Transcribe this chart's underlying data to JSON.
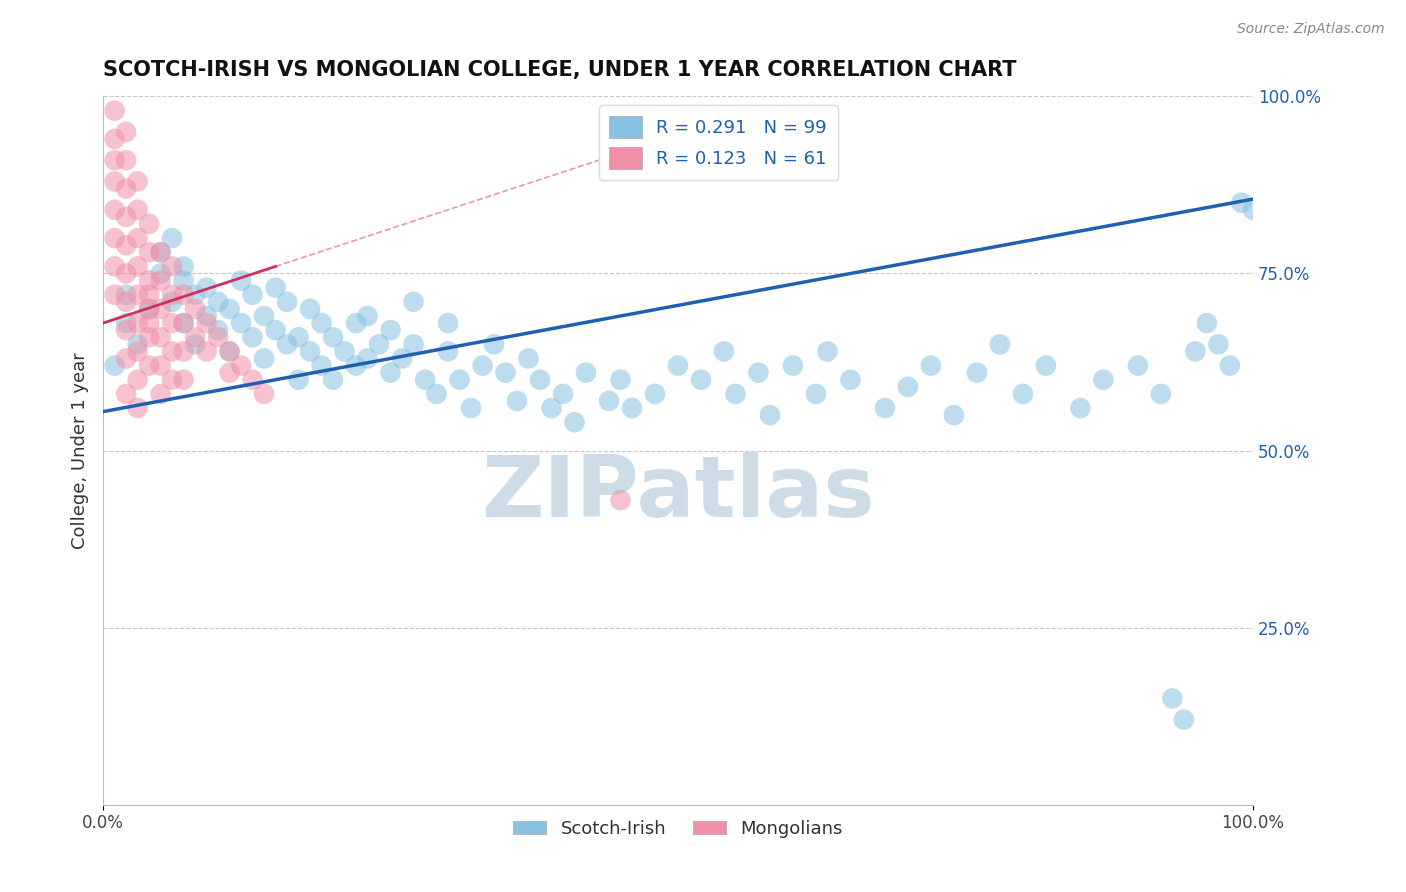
{
  "title": "SCOTCH-IRISH VS MONGOLIAN COLLEGE, UNDER 1 YEAR CORRELATION CHART",
  "source_text": "Source: ZipAtlas.com",
  "ylabel": "College, Under 1 year",
  "xlim": [
    0,
    1.0
  ],
  "ylim": [
    0,
    1.0
  ],
  "ytick_vals_right": [
    1.0,
    0.75,
    0.5,
    0.25
  ],
  "ytick_labels_right": [
    "100.0%",
    "75.0%",
    "50.0%",
    "25.0%"
  ],
  "color_blue": "#88c0e0",
  "color_pink": "#f090a8",
  "color_blue_line": "#2060b0",
  "color_pink_line": "#d03060",
  "watermark_color": "#ccdde8",
  "grid_color": "#c8c8c8",
  "background_color": "#ffffff",
  "blue_line_start_y": 0.555,
  "blue_line_end_y": 0.855,
  "pink_line_start_x": 0.0,
  "pink_line_start_y": 0.68,
  "pink_line_end_x": 0.15,
  "pink_line_end_y": 0.76,
  "scotch_irish_x": [
    0.01,
    0.02,
    0.02,
    0.03,
    0.04,
    0.05,
    0.05,
    0.06,
    0.06,
    0.07,
    0.07,
    0.07,
    0.08,
    0.08,
    0.09,
    0.09,
    0.1,
    0.1,
    0.11,
    0.11,
    0.12,
    0.12,
    0.13,
    0.13,
    0.14,
    0.14,
    0.15,
    0.15,
    0.16,
    0.16,
    0.17,
    0.17,
    0.18,
    0.18,
    0.19,
    0.19,
    0.2,
    0.2,
    0.21,
    0.22,
    0.22,
    0.23,
    0.23,
    0.24,
    0.25,
    0.25,
    0.26,
    0.27,
    0.27,
    0.28,
    0.29,
    0.3,
    0.3,
    0.31,
    0.32,
    0.33,
    0.34,
    0.35,
    0.36,
    0.37,
    0.38,
    0.39,
    0.4,
    0.41,
    0.42,
    0.44,
    0.45,
    0.46,
    0.48,
    0.5,
    0.52,
    0.54,
    0.55,
    0.57,
    0.58,
    0.6,
    0.62,
    0.63,
    0.65,
    0.68,
    0.7,
    0.72,
    0.74,
    0.76,
    0.78,
    0.8,
    0.82,
    0.85,
    0.87,
    0.9,
    0.92,
    0.93,
    0.94,
    0.95,
    0.96,
    0.97,
    0.98,
    0.99,
    1.0
  ],
  "scotch_irish_y": [
    0.62,
    0.68,
    0.72,
    0.65,
    0.7,
    0.75,
    0.78,
    0.8,
    0.71,
    0.76,
    0.68,
    0.74,
    0.72,
    0.65,
    0.69,
    0.73,
    0.67,
    0.71,
    0.64,
    0.7,
    0.68,
    0.74,
    0.66,
    0.72,
    0.63,
    0.69,
    0.67,
    0.73,
    0.65,
    0.71,
    0.6,
    0.66,
    0.64,
    0.7,
    0.62,
    0.68,
    0.6,
    0.66,
    0.64,
    0.62,
    0.68,
    0.63,
    0.69,
    0.65,
    0.61,
    0.67,
    0.63,
    0.65,
    0.71,
    0.6,
    0.58,
    0.64,
    0.68,
    0.6,
    0.56,
    0.62,
    0.65,
    0.61,
    0.57,
    0.63,
    0.6,
    0.56,
    0.58,
    0.54,
    0.61,
    0.57,
    0.6,
    0.56,
    0.58,
    0.62,
    0.6,
    0.64,
    0.58,
    0.61,
    0.55,
    0.62,
    0.58,
    0.64,
    0.6,
    0.56,
    0.59,
    0.62,
    0.55,
    0.61,
    0.65,
    0.58,
    0.62,
    0.56,
    0.6,
    0.62,
    0.58,
    0.15,
    0.12,
    0.64,
    0.68,
    0.65,
    0.62,
    0.85,
    0.84
  ],
  "mongolian_x": [
    0.01,
    0.01,
    0.01,
    0.01,
    0.01,
    0.01,
    0.01,
    0.01,
    0.02,
    0.02,
    0.02,
    0.02,
    0.02,
    0.02,
    0.02,
    0.02,
    0.02,
    0.03,
    0.03,
    0.03,
    0.03,
    0.03,
    0.03,
    0.03,
    0.03,
    0.04,
    0.04,
    0.04,
    0.04,
    0.04,
    0.04,
    0.05,
    0.05,
    0.05,
    0.05,
    0.05,
    0.06,
    0.06,
    0.06,
    0.06,
    0.07,
    0.07,
    0.07,
    0.07,
    0.08,
    0.08,
    0.09,
    0.09,
    0.1,
    0.11,
    0.11,
    0.12,
    0.13,
    0.14,
    0.02,
    0.03,
    0.04,
    0.04,
    0.05,
    0.06,
    0.45
  ],
  "mongolian_y": [
    0.98,
    0.94,
    0.91,
    0.88,
    0.84,
    0.8,
    0.76,
    0.72,
    0.95,
    0.91,
    0.87,
    0.83,
    0.79,
    0.75,
    0.71,
    0.67,
    0.63,
    0.88,
    0.84,
    0.8,
    0.76,
    0.72,
    0.68,
    0.64,
    0.6,
    0.82,
    0.78,
    0.74,
    0.7,
    0.66,
    0.62,
    0.78,
    0.74,
    0.7,
    0.66,
    0.62,
    0.76,
    0.72,
    0.68,
    0.64,
    0.72,
    0.68,
    0.64,
    0.6,
    0.7,
    0.66,
    0.68,
    0.64,
    0.66,
    0.64,
    0.61,
    0.62,
    0.6,
    0.58,
    0.58,
    0.56,
    0.68,
    0.72,
    0.58,
    0.6,
    0.43
  ]
}
